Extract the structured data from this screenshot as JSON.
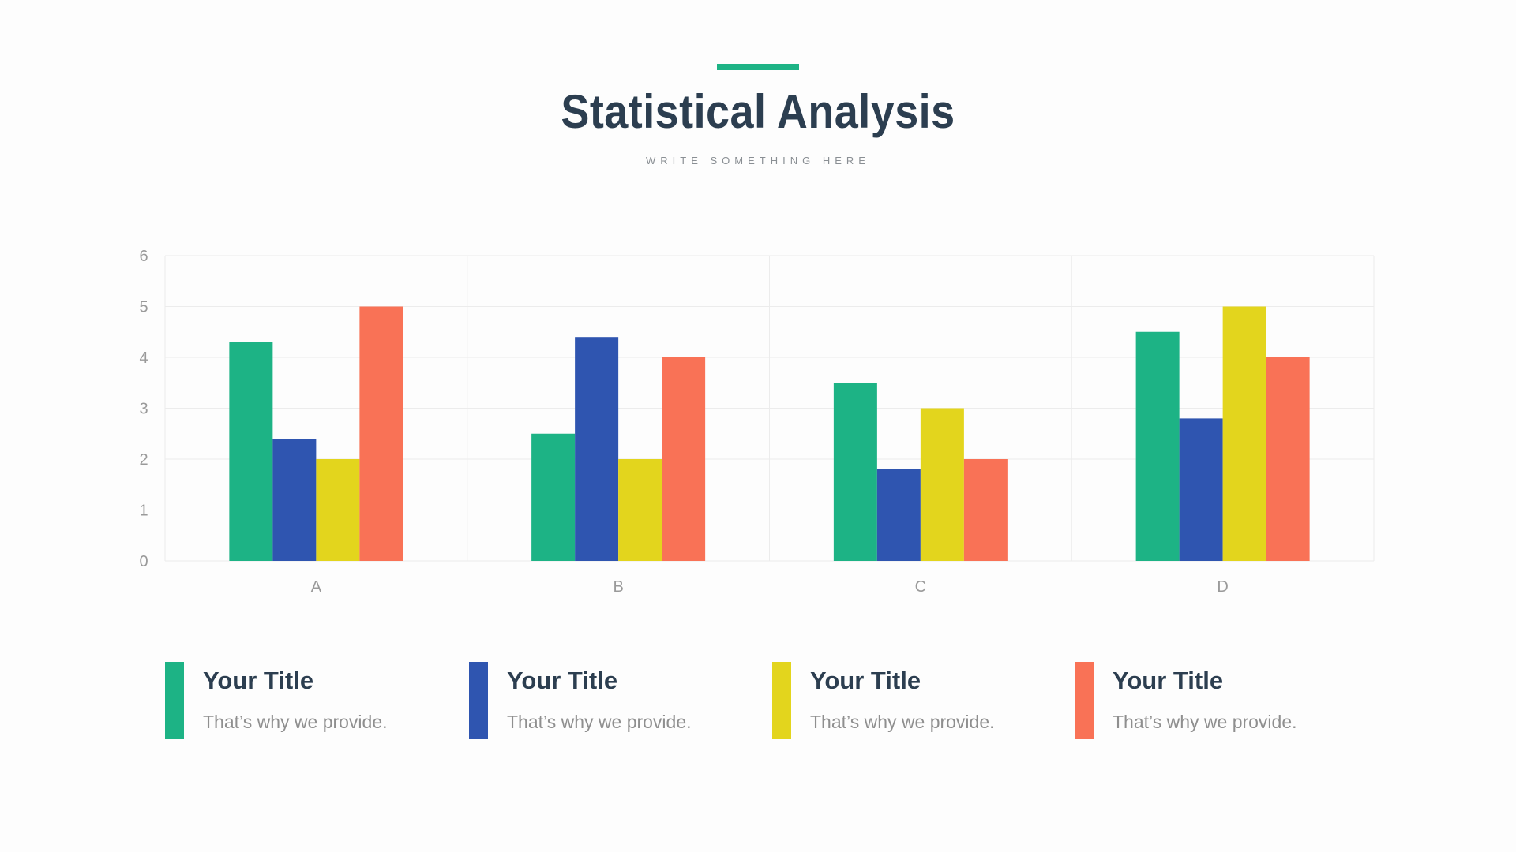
{
  "header": {
    "title": "Statistical Analysis",
    "subtitle": "WRITE SOMETHING HERE"
  },
  "colors": {
    "accent": "#1db385",
    "title": "#2c3e50",
    "series": [
      "#1db385",
      "#2f55b0",
      "#e3d51d",
      "#f97256"
    ]
  },
  "chart_data": {
    "type": "bar",
    "categories": [
      "A",
      "B",
      "C",
      "D"
    ],
    "series": [
      {
        "values": [
          4.3,
          2.5,
          3.5,
          4.5
        ]
      },
      {
        "values": [
          2.4,
          4.4,
          1.8,
          2.8
        ]
      },
      {
        "values": [
          2.0,
          2.0,
          3.0,
          5.0
        ]
      },
      {
        "values": [
          5.0,
          4.0,
          2.0,
          4.0
        ]
      }
    ],
    "y_ticks": [
      "0",
      "1",
      "2",
      "3",
      "4",
      "5",
      "6"
    ],
    "ylim": [
      0,
      6
    ],
    "grid": true,
    "legend": "bottom"
  },
  "legend": {
    "items": [
      {
        "title": "Your Title",
        "desc": "That’s why we provide."
      },
      {
        "title": "Your Title",
        "desc": "That’s why we provide."
      },
      {
        "title": "Your Title",
        "desc": "That’s why we provide."
      },
      {
        "title": "Your Title",
        "desc": "That’s why we provide."
      }
    ]
  }
}
